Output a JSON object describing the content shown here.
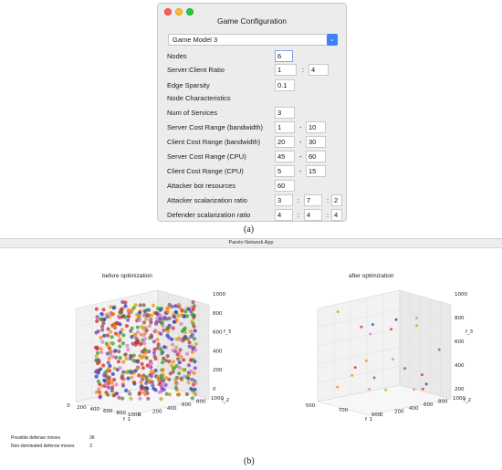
{
  "config_window": {
    "title": "Game Configuration",
    "game_model": "Game Model 3",
    "fields": {
      "nodes": {
        "label": "Nodes",
        "value": "6"
      },
      "ratio": {
        "label": "Server:Client Ratio",
        "v1": "1",
        "sep": ":",
        "v2": "4"
      },
      "edge_sparsity": {
        "label": "Edge Sparsity",
        "value": "0.1"
      },
      "node_char": {
        "label": "Node Characteristics"
      },
      "num_services": {
        "label": "Num of Services",
        "value": "3"
      },
      "server_bw": {
        "label": "Server Cost Range (bandwidth)",
        "v1": "1",
        "sep": "-",
        "v2": "10"
      },
      "client_bw": {
        "label": "Client Cost Range (bandwidth)",
        "v1": "20",
        "sep": "-",
        "v2": "30"
      },
      "server_cpu": {
        "label": "Server Cost Range (CPU)",
        "v1": "45",
        "sep": "-",
        "v2": "60"
      },
      "client_cpu": {
        "label": "Client Cost Range (CPU)",
        "v1": "5",
        "sep": "-",
        "v2": "15"
      },
      "attacker_bot": {
        "label": "Attacker bot resources",
        "value": "60"
      },
      "attacker_scal": {
        "label": "Attacker scalarization ratio",
        "v1": "3",
        "sep1": ":",
        "v2": "7",
        "sep2": ":",
        "v3": "2"
      },
      "defender_scal": {
        "label": "Defender scalarization ratio",
        "v1": "4",
        "sep1": ":",
        "v2": "4",
        "sep2": ":",
        "v3": "4"
      }
    }
  },
  "caption_a": "(a)",
  "caption_b": "(b)",
  "app_window": {
    "title": "Pareto Network App",
    "plots": [
      {
        "title": "before optimization",
        "x_label": "f_1",
        "y_label": "f_2",
        "z_label": "f_3",
        "x_ticks": [
          "0",
          "200",
          "400",
          "600",
          "800",
          "1000"
        ],
        "y_ticks": [
          "0",
          "200",
          "400",
          "600",
          "800",
          "1000"
        ],
        "z_ticks": [
          "0",
          "200",
          "400",
          "600",
          "800",
          "1000"
        ]
      },
      {
        "title": "after optimization",
        "x_label": "f_1",
        "y_label": "f_2",
        "z_label": "f_3",
        "x_ticks": [
          "500",
          "700",
          "900"
        ],
        "y_ticks": [
          "0",
          "200",
          "400",
          "600",
          "800",
          "1000"
        ],
        "z_ticks": [
          "200",
          "400",
          "600",
          "800",
          "1000"
        ]
      }
    ],
    "stats": {
      "possible_label": "Possible defense moves",
      "possible_value": "36",
      "nondominated_label": "Non-dominated defense moves",
      "nondominated_value": "3"
    }
  },
  "colors": {
    "accent": "#3b82f6",
    "point_palette": [
      "#d62728",
      "#2ca02c",
      "#7f3fbf",
      "#d4a017",
      "#e377c2",
      "#1f3fbf",
      "#8c564b",
      "#ff7f0e"
    ]
  }
}
